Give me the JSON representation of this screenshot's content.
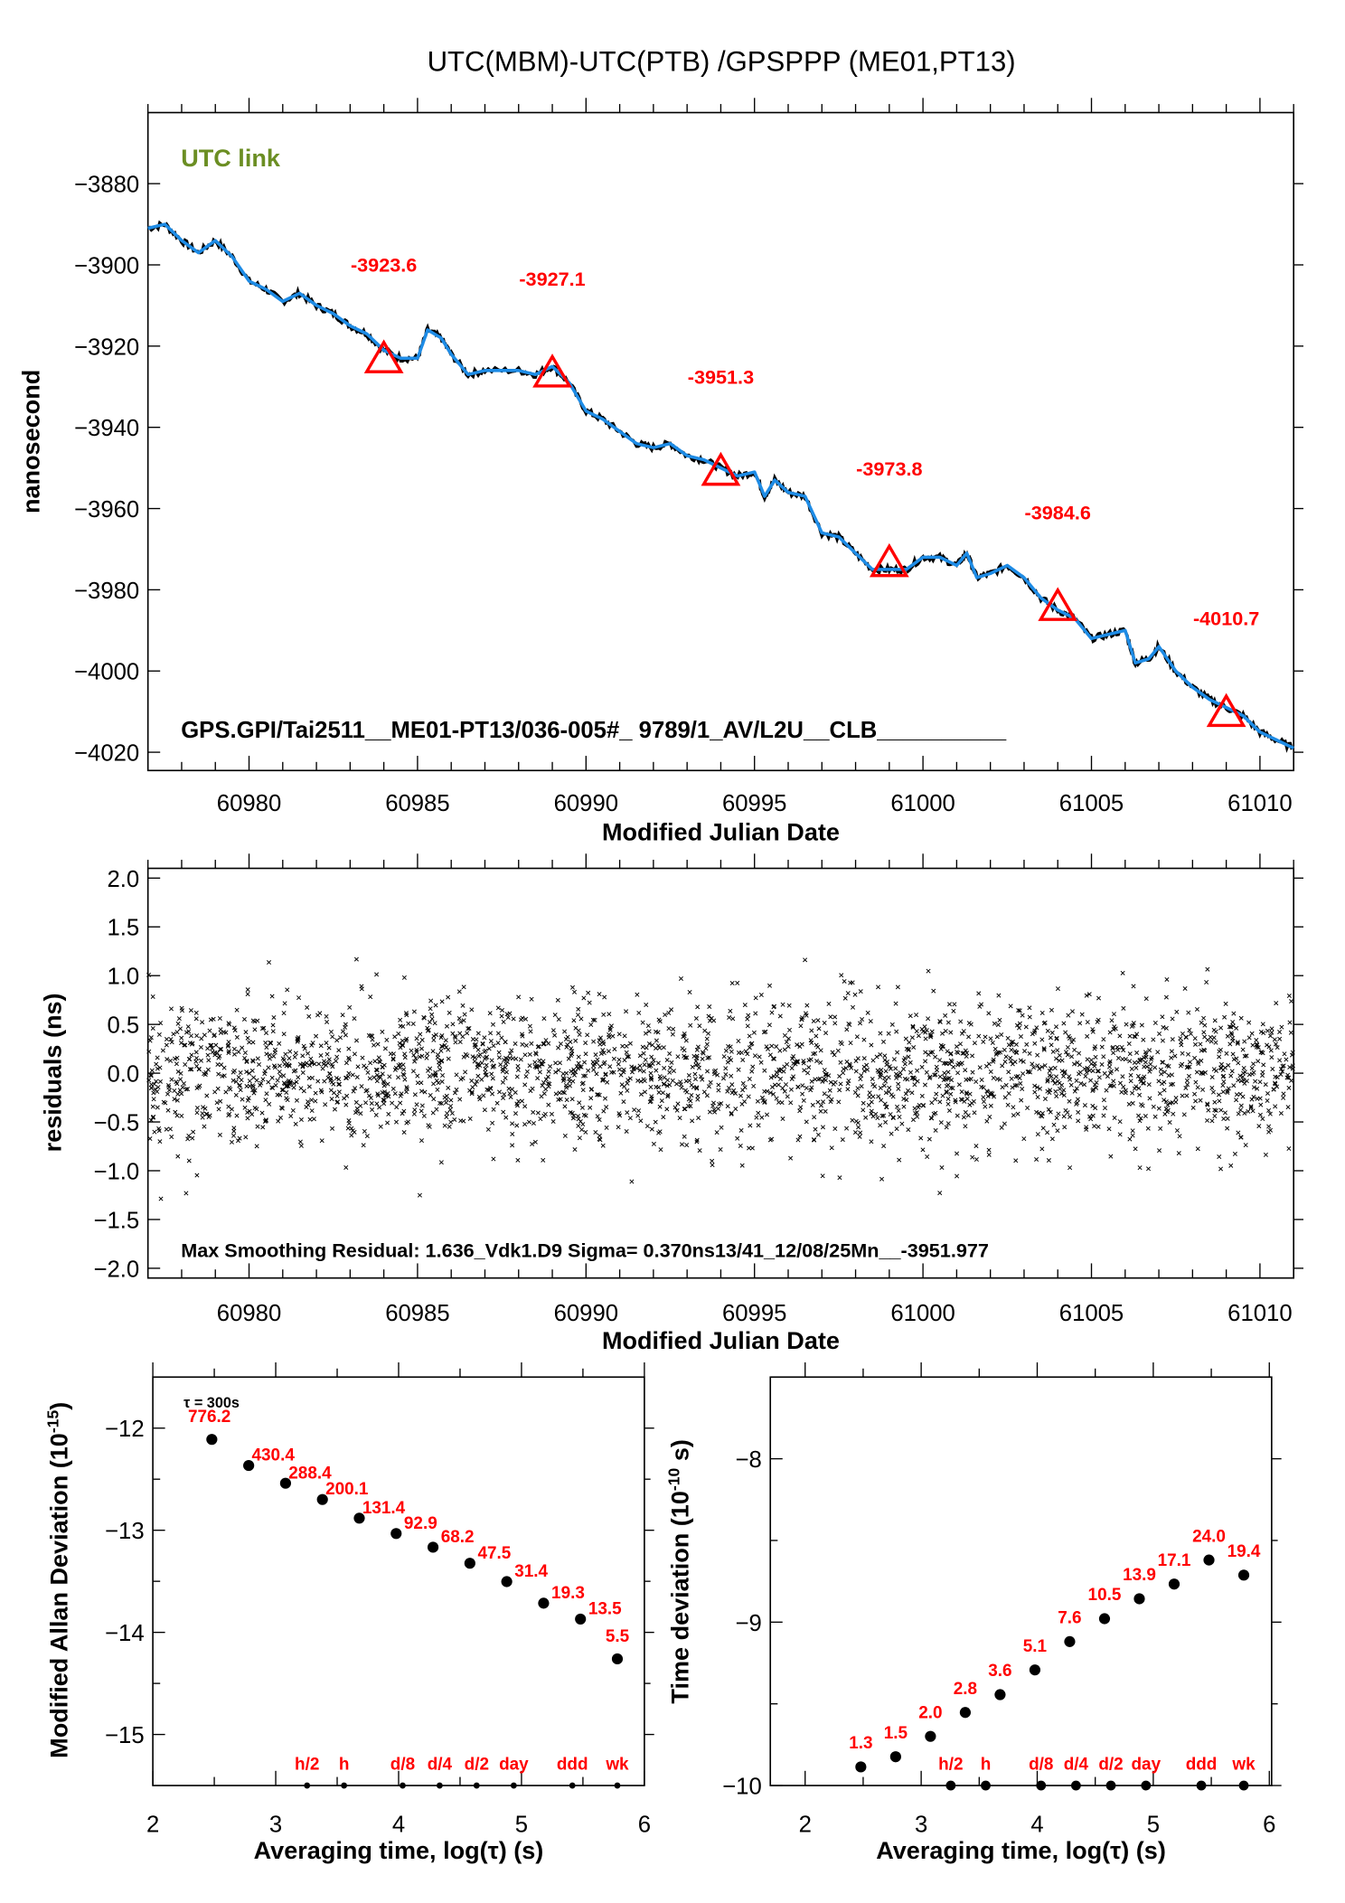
{
  "title": "UTC(MBM)-UTC(PTB)  /GPSPPP  (ME01,PT13)",
  "colors": {
    "curve": "#1e8ce6",
    "outline": "#000000",
    "annotation": "#ff0000",
    "link_label": "#6b8e23"
  },
  "chart_data": [
    {
      "id": "time-series",
      "type": "line",
      "legend_text": "UTC link",
      "footer": "GPS.GPI/Tai2511__ME01-PT13/036-005#_  9789/1_AV/L2U__CLB__________",
      "xlabel": "Modified Julian Date",
      "ylabel": "nanosecond",
      "xlim": [
        60977,
        61011
      ],
      "ylim": [
        -4024.5,
        -3862.5
      ],
      "xticks": [
        60980,
        60985,
        60990,
        60995,
        61000,
        61005,
        61010
      ],
      "yticks": [
        -3880,
        -3900,
        -3920,
        -3940,
        -3960,
        -3980,
        -4000,
        -4020
      ],
      "ytick_labels": [
        "−3880",
        "−3900",
        "−3920",
        "−3940",
        "−3960",
        "−3980",
        "−4000",
        "−4020"
      ],
      "x": [
        60977,
        60977.5,
        60978,
        60978.5,
        60979,
        60979.5,
        60980,
        60980.5,
        60981,
        60981.5,
        60982,
        60982.5,
        60983,
        60983.5,
        60984,
        60984.5,
        60985,
        60985.3,
        60985.7,
        60986,
        60986.5,
        60987,
        60988,
        60988.5,
        60989,
        60989.5,
        60990,
        60990.5,
        60991,
        60991.5,
        60992,
        60992.5,
        60993,
        60993.5,
        60994,
        60994.5,
        60995,
        60995.3,
        60995.6,
        60996,
        60996.5,
        60997,
        60997.5,
        60998,
        60998.5,
        60999,
        60999.5,
        61000,
        61000.5,
        61001,
        61001.3,
        61001.6,
        61002,
        61002.5,
        61003,
        61003.5,
        61004,
        61004.5,
        61005,
        61005.5,
        61006,
        61006.3,
        61006.7,
        61007,
        61007.5,
        61008,
        61008.5,
        61009,
        61009.5,
        61010,
        61010.5,
        61011
      ],
      "y": [
        -3891,
        -3890,
        -3894,
        -3897,
        -3894,
        -3898,
        -3904,
        -3906,
        -3909,
        -3907,
        -3910,
        -3912,
        -3915,
        -3917,
        -3921,
        -3923,
        -3923,
        -3916,
        -3918,
        -3922,
        -3927,
        -3926,
        -3926,
        -3927,
        -3925,
        -3929,
        -3936,
        -3938,
        -3941,
        -3944,
        -3945,
        -3944,
        -3947,
        -3948,
        -3950,
        -3952,
        -3951,
        -3957,
        -3953,
        -3956,
        -3957,
        -3966,
        -3967,
        -3971,
        -3975,
        -3975,
        -3975,
        -3972,
        -3972,
        -3974,
        -3971,
        -3977,
        -3976,
        -3974,
        -3977,
        -3982,
        -3985,
        -3987,
        -3992,
        -3991,
        -3990,
        -3998,
        -3997,
        -3994,
        -4000,
        -4004,
        -4007,
        -4009,
        -4011,
        -4015,
        -4017,
        -4019
      ],
      "markers": [
        {
          "mjd": 60984,
          "value": -3923.6,
          "label": "-3923.6"
        },
        {
          "mjd": 60989,
          "value": -3927.1,
          "label": "-3927.1"
        },
        {
          "mjd": 60994,
          "value": -3951.3,
          "label": "-3951.3"
        },
        {
          "mjd": 60999,
          "value": -3973.8,
          "label": "-3973.8"
        },
        {
          "mjd": 61004,
          "value": -3984.6,
          "label": "-3984.6"
        },
        {
          "mjd": 61009,
          "value": -4010.7,
          "label": "-4010.7"
        }
      ],
      "grid": false
    },
    {
      "id": "residuals",
      "type": "scatter",
      "xlabel": "Modified Julian Date",
      "ylabel": "residuals (ns)",
      "xlim": [
        60977,
        61011
      ],
      "ylim": [
        -2.1,
        2.1
      ],
      "xticks": [
        60980,
        60985,
        60990,
        60995,
        61000,
        61005,
        61010
      ],
      "yticks": [
        2.0,
        1.5,
        1.0,
        0.5,
        0.0,
        -0.5,
        -1.0,
        -1.5,
        -2.0
      ],
      "ytick_labels": [
        "2.0",
        "1.5",
        "1.0",
        "0.5",
        "0.0",
        "−0.5",
        "−1.0",
        "−1.5",
        "−2.0"
      ],
      "sigma_ns": 0.37,
      "max_residual": 1.636,
      "marker": "x",
      "annotation": "Max Smoothing Residual: 1.636_Vdk1.D9  Sigma= 0.370ns13/41_12/08/25Mn__-3951.977",
      "grid": false
    },
    {
      "id": "mdev",
      "type": "scatter",
      "xlabel": "Averaging time, log(τ) (s)",
      "ylabel": "Modified Allan Deviation (10",
      "ylabel_exp": "-15",
      "ylabel_end": ")",
      "tau0_label": "τ = 300s",
      "xlim": [
        2,
        6
      ],
      "ylim": [
        -15.5,
        -11.5
      ],
      "xticks": [
        2,
        3,
        4,
        5,
        6
      ],
      "yticks": [
        -12,
        -13,
        -14,
        -15
      ],
      "ytick_labels": [
        "−12",
        "−13",
        "−14",
        "−15"
      ],
      "x": [
        2.48,
        2.78,
        3.08,
        3.38,
        3.68,
        3.98,
        4.28,
        4.58,
        4.88,
        5.18,
        5.48,
        5.78
      ],
      "values": [
        776.2,
        430.4,
        288.4,
        200.1,
        131.4,
        92.9,
        68.2,
        47.5,
        31.4,
        19.3,
        13.5,
        5.5
      ],
      "labels": [
        "776.2",
        "430.4",
        "288.4",
        "200.1",
        "131.4",
        "92.9",
        "68.2",
        "47.5",
        "31.4",
        "19.3",
        "13.5",
        "5.5"
      ],
      "value_scale_exp": -15,
      "reference_marks": [
        {
          "label": "h/2",
          "x": 3.255
        },
        {
          "label": "h",
          "x": 3.556
        },
        {
          "label": "d/8",
          "x": 4.033
        },
        {
          "label": "d/4",
          "x": 4.334
        },
        {
          "label": "d/2",
          "x": 4.635
        },
        {
          "label": "day",
          "x": 4.937
        },
        {
          "label": "ddd",
          "x": 5.414
        },
        {
          "label": "wk",
          "x": 5.78
        }
      ]
    },
    {
      "id": "tdev",
      "type": "scatter",
      "xlabel": "Averaging time, log(τ) (s)",
      "ylabel": "Time deviation (10",
      "ylabel_exp": "-10",
      "ylabel_end": " s)",
      "xlim": [
        1.7,
        6.02
      ],
      "ylim": [
        -10,
        -7.5
      ],
      "xticks": [
        2,
        3,
        4,
        5,
        6
      ],
      "yticks": [
        -8,
        -9,
        -10
      ],
      "ytick_labels": [
        "−8",
        "−9",
        "−10"
      ],
      "x": [
        2.48,
        2.78,
        3.08,
        3.38,
        3.68,
        3.98,
        4.28,
        4.58,
        4.88,
        5.18,
        5.48,
        5.78
      ],
      "values": [
        1.3,
        1.5,
        2.0,
        2.8,
        3.6,
        5.1,
        7.6,
        10.5,
        13.9,
        17.1,
        24.0,
        19.4
      ],
      "labels": [
        "1.3",
        "1.5",
        "2.0",
        "2.8",
        "3.6",
        "5.1",
        "7.6",
        "10.5",
        "13.9",
        "17.1",
        "24.0",
        "19.4"
      ],
      "value_scale_exp": -10,
      "reference_marks": [
        {
          "label": "h/2",
          "x": 3.255
        },
        {
          "label": "h",
          "x": 3.556
        },
        {
          "label": "d/8",
          "x": 4.033
        },
        {
          "label": "d/4",
          "x": 4.334
        },
        {
          "label": "d/2",
          "x": 4.635
        },
        {
          "label": "day",
          "x": 4.937
        },
        {
          "label": "ddd",
          "x": 5.414
        },
        {
          "label": "wk",
          "x": 5.78
        }
      ]
    }
  ]
}
